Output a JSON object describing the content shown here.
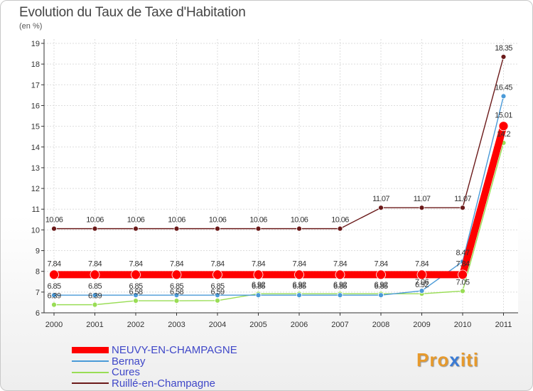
{
  "chart_data": {
    "type": "line",
    "title": "Evolution du Taux de Taxe d'Habitation",
    "subtitle": "(en %)",
    "xlabel": "",
    "ylabel": "",
    "ylim": [
      6,
      19
    ],
    "yticks": [
      "6",
      "7",
      "8",
      "9",
      "10",
      "11",
      "12",
      "13",
      "14",
      "15",
      "16",
      "17",
      "18",
      "19"
    ],
    "categories": [
      "2000",
      "2001",
      "2002",
      "2003",
      "2004",
      "2005",
      "2006",
      "2007",
      "2008",
      "2009",
      "2010",
      "2011"
    ],
    "series": [
      {
        "name": "Ruillé-en-Champagne",
        "color": "#6b1a1a",
        "values": [
          10.06,
          10.06,
          10.06,
          10.06,
          10.06,
          10.06,
          10.06,
          10.06,
          11.07,
          11.07,
          11.07,
          18.35
        ],
        "labels": [
          "10.06",
          "10.06",
          "10.06",
          "10.06",
          "10.06",
          "10.06",
          "10.06",
          "10.06",
          "11.07",
          "11.07",
          "11.07",
          "18.35"
        ]
      },
      {
        "name": "Cures",
        "color": "#99dd55",
        "values": [
          6.39,
          6.39,
          6.58,
          6.58,
          6.59,
          6.92,
          6.92,
          6.92,
          6.92,
          6.92,
          7.05,
          14.2
        ],
        "labels": [
          "6.39",
          "6.39",
          "6.58",
          "6.58",
          "6.59",
          "6.92",
          "6.92",
          "6.92",
          "6.92",
          "6.92",
          "7.05",
          "14.2"
        ]
      },
      {
        "name": "Bernay",
        "color": "#4a9ad8",
        "values": [
          6.85,
          6.85,
          6.85,
          6.85,
          6.85,
          6.85,
          6.85,
          6.85,
          6.85,
          7.06,
          8.47,
          16.45
        ],
        "labels": [
          "6.85",
          "6.85",
          "6.85",
          "6.85",
          "6.85",
          "6.85",
          "6.85",
          "6.85",
          "6.85",
          "7.06",
          "8.47",
          "16.45"
        ]
      },
      {
        "name": "NEUVY-EN-CHAMPAGNE",
        "color": "#ff0000",
        "values": [
          7.84,
          7.84,
          7.84,
          7.84,
          7.84,
          7.84,
          7.84,
          7.84,
          7.84,
          7.84,
          7.84,
          15.01
        ],
        "labels": [
          "7.84",
          "7.84",
          "7.84",
          "7.84",
          "7.84",
          "7.84",
          "7.84",
          "7.84",
          "7.84",
          "7.84",
          "7.84",
          "15.01"
        ]
      }
    ],
    "legend": [
      "NEUVY-EN-CHAMPAGNE",
      "Bernay",
      "Cures",
      "Ruillé-en-Champagne"
    ],
    "legend_colors": [
      "#ff0000",
      "#4a9ad8",
      "#99dd55",
      "#6b1a1a"
    ]
  },
  "logo": {
    "part1": "Pro",
    "part2": "x",
    "part3": "iti"
  }
}
